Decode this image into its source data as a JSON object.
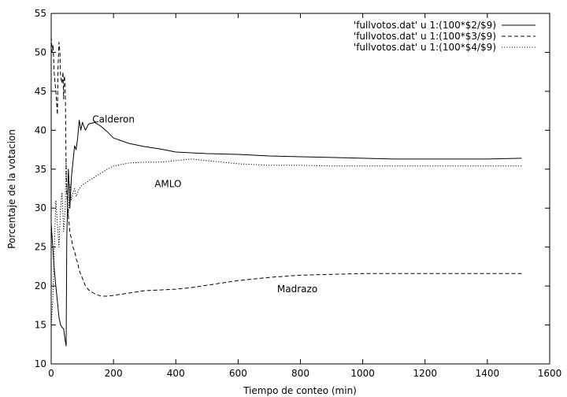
{
  "chart_data": {
    "type": "line",
    "title": "",
    "xlabel": "Tiempo de conteo (min)",
    "ylabel": "Porcentaje de la votacion",
    "xlim": [
      0,
      1600
    ],
    "ylim": [
      10,
      55
    ],
    "xticks": [
      0,
      200,
      400,
      600,
      800,
      1000,
      1200,
      1400,
      1600
    ],
    "yticks": [
      10,
      15,
      20,
      25,
      30,
      35,
      40,
      45,
      50,
      55
    ],
    "grid": false,
    "legend_position": "top-right",
    "series": [
      {
        "name": "'fullvotos.dat' u 1:(100*$2/$9)",
        "style": "solid",
        "color": "#000000",
        "x": [
          0,
          5,
          10,
          15,
          20,
          25,
          30,
          35,
          40,
          45,
          48,
          50,
          55,
          58,
          60,
          65,
          70,
          75,
          80,
          85,
          90,
          95,
          100,
          110,
          120,
          140,
          160,
          180,
          200,
          250,
          300,
          350,
          400,
          450,
          500,
          600,
          700,
          800,
          900,
          1000,
          1100,
          1200,
          1300,
          1400,
          1510
        ],
        "y": [
          28,
          25,
          22,
          20,
          18,
          16,
          15,
          14.7,
          14.5,
          13,
          12.3,
          26,
          35,
          33,
          30,
          34,
          36,
          38,
          37.5,
          39,
          41.3,
          40,
          41,
          40,
          40.8,
          41,
          40.5,
          39.8,
          39,
          38.3,
          37.9,
          37.6,
          37.2,
          37.1,
          37,
          36.9,
          36.7,
          36.6,
          36.5,
          36.4,
          36.3,
          36.3,
          36.3,
          36.3,
          36.4
        ]
      },
      {
        "name": "'fullvotos.dat' u 1:(100*$3/$9)",
        "style": "dashed",
        "color": "#000000",
        "x": [
          0,
          3,
          6,
          10,
          15,
          20,
          22,
          25,
          28,
          30,
          35,
          38,
          40,
          42,
          45,
          48,
          50,
          55,
          60,
          65,
          70,
          75,
          80,
          85,
          90,
          95,
          100,
          110,
          120,
          140,
          160,
          180,
          200,
          250,
          300,
          350,
          400,
          450,
          500,
          600,
          700,
          800,
          900,
          1000,
          1100,
          1200,
          1300,
          1400,
          1510
        ],
        "y": [
          52,
          50,
          51,
          47,
          45,
          42,
          48,
          51.3,
          50,
          47,
          46,
          47.5,
          44,
          47,
          46,
          35,
          32,
          29,
          27,
          26,
          25,
          24.5,
          23.5,
          23,
          22,
          21.5,
          21,
          20,
          19.5,
          19,
          18.7,
          18.7,
          18.8,
          19.1,
          19.4,
          19.5,
          19.6,
          19.8,
          20.1,
          20.7,
          21.1,
          21.4,
          21.5,
          21.6,
          21.6,
          21.6,
          21.6,
          21.6,
          21.6
        ]
      },
      {
        "name": "'fullvotos.dat' u 1:(100*$4/$9)",
        "style": "dotted",
        "color": "#000000",
        "x": [
          0,
          5,
          10,
          15,
          20,
          25,
          30,
          35,
          40,
          45,
          48,
          50,
          55,
          60,
          65,
          70,
          75,
          80,
          90,
          100,
          120,
          140,
          160,
          180,
          200,
          250,
          300,
          350,
          400,
          450,
          500,
          600,
          700,
          800,
          900,
          1000,
          1100,
          1200,
          1300,
          1400,
          1510
        ],
        "y": [
          15,
          18,
          25,
          31,
          28,
          25,
          30,
          32,
          27,
          30,
          36.5,
          32,
          29,
          33,
          31,
          32,
          32.5,
          31.5,
          32.5,
          33,
          33.5,
          34,
          34.5,
          35,
          35.4,
          35.8,
          35.9,
          35.9,
          36.1,
          36.3,
          36.1,
          35.7,
          35.5,
          35.5,
          35.4,
          35.4,
          35.4,
          35.4,
          35.4,
          35.4,
          35.4
        ]
      }
    ],
    "annotations": [
      {
        "text": "Calderon",
        "x": 200,
        "y": 41
      },
      {
        "text": "AMLO",
        "x": 375,
        "y": 32.7
      },
      {
        "text": "Madrazo",
        "x": 790,
        "y": 19.2
      }
    ]
  }
}
